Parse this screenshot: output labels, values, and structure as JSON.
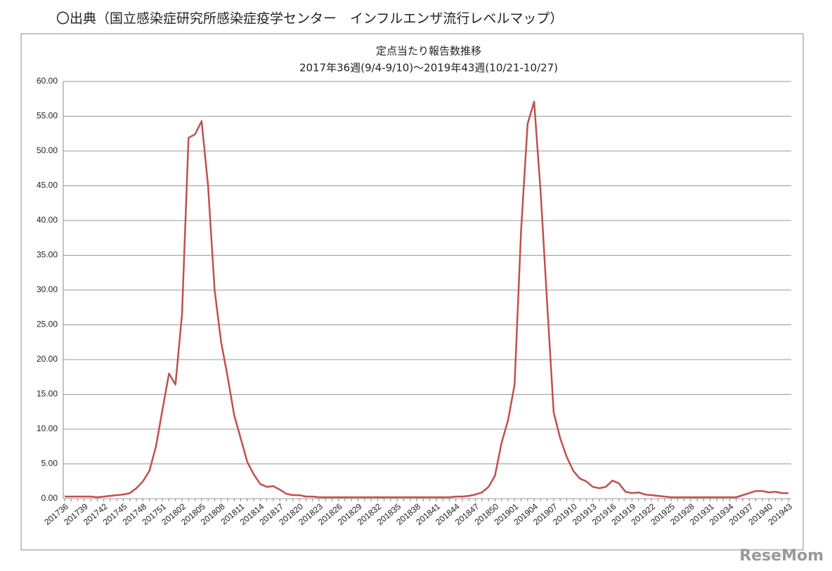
{
  "header": "〇出典（国立感染症研究所感染症疫学センター　インフルエンザ流行レベルマップ）",
  "watermark": "ReseMom",
  "chart_data": {
    "type": "line",
    "title": "定点当たり報告数推移",
    "subtitle": "2017年36週(9/4-9/10)〜2019年43週(10/21-10/27)",
    "categories": [
      "201736",
      null,
      null,
      "201739",
      null,
      null,
      "201742",
      null,
      null,
      "201745",
      null,
      null,
      "201748",
      null,
      null,
      "201751",
      null,
      null,
      "201802",
      null,
      null,
      "201805",
      null,
      null,
      "201808",
      null,
      null,
      "201811",
      null,
      null,
      "201814",
      null,
      null,
      "201817",
      null,
      null,
      "201820",
      null,
      null,
      "201823",
      null,
      null,
      "201826",
      null,
      null,
      "201829",
      null,
      null,
      "201832",
      null,
      null,
      "201835",
      null,
      null,
      "201838",
      null,
      null,
      "201841",
      null,
      null,
      "201844",
      null,
      null,
      "201847",
      null,
      null,
      "201850",
      null,
      null,
      "201901",
      null,
      null,
      "201904",
      null,
      null,
      "201907",
      null,
      null,
      "201910",
      null,
      null,
      "201913",
      null,
      null,
      "201916",
      null,
      null,
      "201919",
      null,
      null,
      "201922",
      null,
      null,
      "201925",
      null,
      null,
      "201928",
      null,
      null,
      "201931",
      null,
      null,
      "201934",
      null,
      null,
      "201937",
      null,
      null,
      "201940",
      null,
      null,
      "201943"
    ],
    "series": [
      {
        "name": null,
        "color": "#c0504d",
        "values": [
          0.3,
          0.3,
          0.3,
          0.3,
          0.3,
          0.2,
          0.3,
          0.4,
          0.5,
          0.6,
          0.8,
          1.5,
          2.5,
          4.0,
          7.5,
          12.8,
          18.0,
          16.4,
          26.5,
          51.9,
          52.4,
          54.3,
          45.0,
          30.0,
          22.5,
          17.5,
          12.0,
          8.7,
          5.3,
          3.5,
          2.1,
          1.7,
          1.8,
          1.3,
          0.7,
          0.5,
          0.5,
          0.3,
          0.3,
          0.2,
          0.2,
          0.2,
          0.2,
          0.2,
          0.2,
          0.2,
          0.2,
          0.2,
          0.2,
          0.2,
          0.2,
          0.2,
          0.2,
          0.2,
          0.2,
          0.2,
          0.2,
          0.2,
          0.2,
          0.2,
          0.3,
          0.3,
          0.4,
          0.6,
          0.9,
          1.7,
          3.3,
          8.0,
          11.3,
          16.4,
          38.5,
          53.9,
          57.1,
          44.0,
          28.0,
          12.4,
          8.7,
          6.0,
          4.0,
          2.9,
          2.5,
          1.7,
          1.5,
          1.7,
          2.6,
          2.2,
          1.0,
          0.8,
          0.9,
          0.6,
          0.5,
          0.4,
          0.3,
          0.2,
          0.2,
          0.2,
          0.2,
          0.2,
          0.2,
          0.2,
          0.2,
          0.2,
          0.2,
          0.2,
          0.5,
          0.8,
          1.1,
          1.1,
          0.9,
          1.0,
          0.8,
          0.8
        ]
      }
    ],
    "ylim": [
      0,
      60
    ],
    "yticks": [
      {
        "value": 0,
        "label": "0.00"
      },
      {
        "value": 5,
        "label": "5.00"
      },
      {
        "value": 10,
        "label": "10.00"
      },
      {
        "value": 15,
        "label": "15.00"
      },
      {
        "value": 20,
        "label": "20.00"
      },
      {
        "value": 25,
        "label": "25.00"
      },
      {
        "value": 30,
        "label": "30.00"
      },
      {
        "value": 35,
        "label": "35.00"
      },
      {
        "value": 40,
        "label": "40.00"
      },
      {
        "value": 45,
        "label": "45.00"
      },
      {
        "value": 50,
        "label": "50.00"
      },
      {
        "value": 55,
        "label": "55.00"
      },
      {
        "value": 60,
        "label": "60.00"
      }
    ],
    "grid": true
  }
}
